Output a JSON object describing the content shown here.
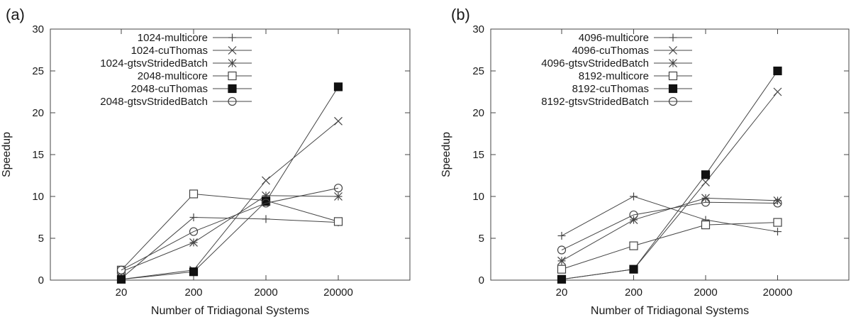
{
  "chart_data": [
    {
      "type": "line",
      "panel_label": "(a)",
      "xlabel": "Number of Tridiagonal Systems",
      "ylabel": "Speedup",
      "categories": [
        "20",
        "200",
        "2000",
        "20000"
      ],
      "ylim": [
        0,
        30
      ],
      "yticks": [
        "0",
        "5",
        "10",
        "15",
        "20",
        "25",
        "30"
      ],
      "grid": false,
      "legend_position": "top-right",
      "series": [
        {
          "name": "1024-multicore",
          "marker": "plus",
          "values": [
            0.2,
            7.5,
            7.3,
            6.9
          ]
        },
        {
          "name": "1024-cuThomas",
          "marker": "cross",
          "values": [
            0.1,
            1.2,
            11.9,
            19.0
          ]
        },
        {
          "name": "1024-gtsvStridedBatch",
          "marker": "star",
          "values": [
            1.0,
            4.5,
            10.1,
            10.0
          ]
        },
        {
          "name": "2048-multicore",
          "marker": "square-open",
          "values": [
            1.2,
            10.3,
            9.5,
            7.0
          ]
        },
        {
          "name": "2048-cuThomas",
          "marker": "square-filled",
          "values": [
            0.1,
            1.0,
            9.4,
            23.1
          ]
        },
        {
          "name": "2048-gtsvStridedBatch",
          "marker": "circle-open",
          "values": [
            1.2,
            5.8,
            9.2,
            11.0
          ]
        }
      ]
    },
    {
      "type": "line",
      "panel_label": "(b)",
      "xlabel": "Number of Tridiagonal Systems",
      "ylabel": "Speedup",
      "categories": [
        "20",
        "200",
        "2000",
        "20000"
      ],
      "ylim": [
        0,
        30
      ],
      "yticks": [
        "0",
        "5",
        "10",
        "15",
        "20",
        "25",
        "30"
      ],
      "grid": false,
      "legend_position": "top-right",
      "series": [
        {
          "name": "4096-multicore",
          "marker": "plus",
          "values": [
            5.3,
            10.0,
            7.2,
            5.8
          ]
        },
        {
          "name": "4096-cuThomas",
          "marker": "cross",
          "values": [
            0.1,
            1.3,
            11.7,
            22.5
          ]
        },
        {
          "name": "4096-gtsvStridedBatch",
          "marker": "star",
          "values": [
            2.3,
            7.2,
            9.8,
            9.5
          ]
        },
        {
          "name": "8192-multicore",
          "marker": "square-open",
          "values": [
            1.3,
            4.1,
            6.6,
            6.9
          ]
        },
        {
          "name": "8192-cuThomas",
          "marker": "square-filled",
          "values": [
            0.1,
            1.3,
            12.6,
            25.0
          ]
        },
        {
          "name": "8192-gtsvStridedBatch",
          "marker": "circle-open",
          "values": [
            3.6,
            7.8,
            9.3,
            9.2
          ]
        }
      ]
    }
  ]
}
